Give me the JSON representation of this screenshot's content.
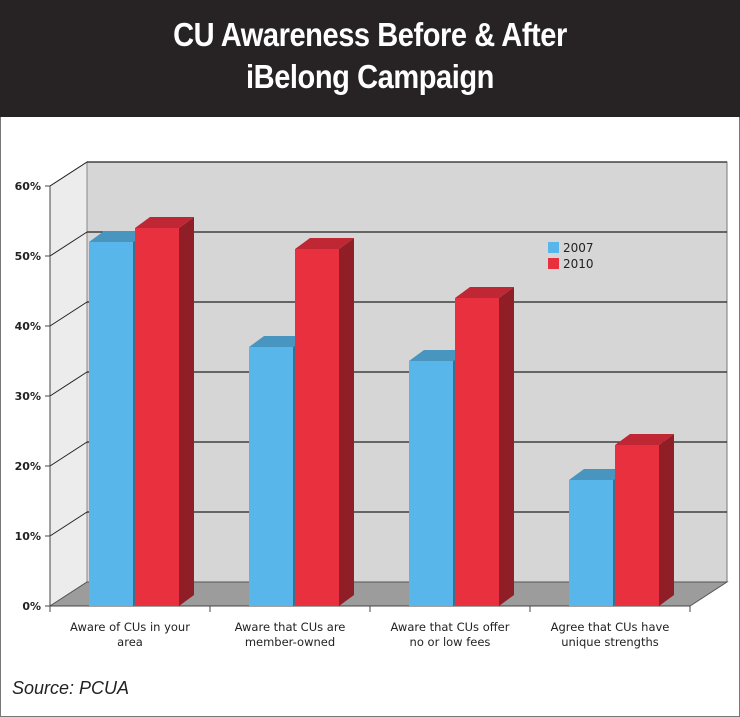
{
  "header": {
    "title_line_1": "CU Awareness Before & After",
    "title_line_2": "iBelong Campaign"
  },
  "chart_data": {
    "type": "bar",
    "categories_lines": [
      [
        "Aware of CUs in your",
        "area"
      ],
      [
        "Aware that CUs are",
        "member-owned"
      ],
      [
        "Aware that CUs offer",
        "no or low fees"
      ],
      [
        "Agree that CUs have",
        "unique strengths"
      ]
    ],
    "series": [
      {
        "name": "2007",
        "color": "#58b6ea",
        "values": [
          52,
          37,
          35,
          18
        ]
      },
      {
        "name": "2010",
        "color": "#e8303e",
        "values": [
          54,
          51,
          44,
          23
        ]
      }
    ],
    "ylim": [
      0,
      60
    ],
    "yticks": [
      "0%",
      "10%",
      "20%",
      "30%",
      "40%",
      "50%",
      "60%"
    ],
    "grid": true,
    "legend_position": "top-right"
  },
  "source": "Source: PCUA"
}
